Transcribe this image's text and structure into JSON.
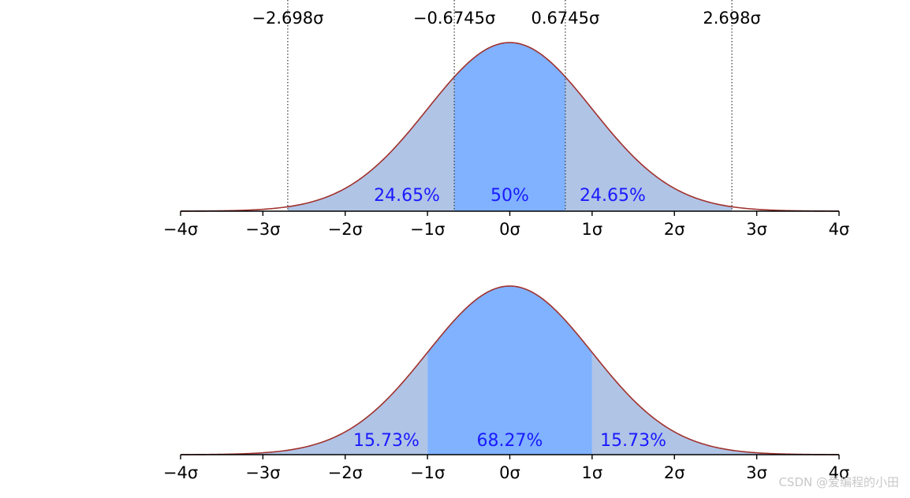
{
  "colors": {
    "curve": "#a0322e",
    "light_fill": "#b0c4e6",
    "dark_fill": "#80b2ff",
    "axis": "#000000",
    "label": "#1a1aff",
    "guide": "#333333"
  },
  "chart_data": [
    {
      "type": "area",
      "title": "",
      "description_series": "standard normal density, quartile split",
      "xlim": [
        -4,
        4
      ],
      "x_ticks": [
        -4,
        -3,
        -2,
        -1,
        0,
        1,
        2,
        3,
        4
      ],
      "x_tick_labels": [
        "−4σ",
        "−3σ",
        "−2σ",
        "−1σ",
        "0σ",
        "1σ",
        "2σ",
        "3σ",
        "4σ"
      ],
      "guide_lines": [
        {
          "x": -2.698,
          "label": "−2.698σ"
        },
        {
          "x": -0.6745,
          "label": "−0.6745σ"
        },
        {
          "x": 0.6745,
          "label": "0.6745σ"
        },
        {
          "x": 2.698,
          "label": "2.698σ"
        }
      ],
      "regions": [
        {
          "from": -2.698,
          "to": -0.6745,
          "shade": "light",
          "label": "24.65%",
          "label_x": -1.25
        },
        {
          "from": -0.6745,
          "to": 0.6745,
          "shade": "dark",
          "label": "50%",
          "label_x": 0
        },
        {
          "from": 0.6745,
          "to": 2.698,
          "shade": "light",
          "label": "24.65%",
          "label_x": 1.25
        }
      ]
    },
    {
      "type": "area",
      "title": "",
      "description_series": "standard normal density, one-sigma split",
      "xlim": [
        -4,
        4
      ],
      "x_ticks": [
        -4,
        -3,
        -2,
        -1,
        0,
        1,
        2,
        3,
        4
      ],
      "x_tick_labels": [
        "−4σ",
        "−3σ",
        "−2σ",
        "−1σ",
        "0σ",
        "1σ",
        "2σ",
        "3σ",
        "4σ"
      ],
      "guide_lines": [],
      "regions": [
        {
          "from": -4,
          "to": -1,
          "shade": "light",
          "label": "15.73%",
          "label_x": -1.5
        },
        {
          "from": -1,
          "to": 1,
          "shade": "dark",
          "label": "68.27%",
          "label_x": 0
        },
        {
          "from": 1,
          "to": 4,
          "shade": "light",
          "label": "15.73%",
          "label_x": 1.5
        }
      ]
    }
  ],
  "watermark": "CSDN @爱编程的小田"
}
